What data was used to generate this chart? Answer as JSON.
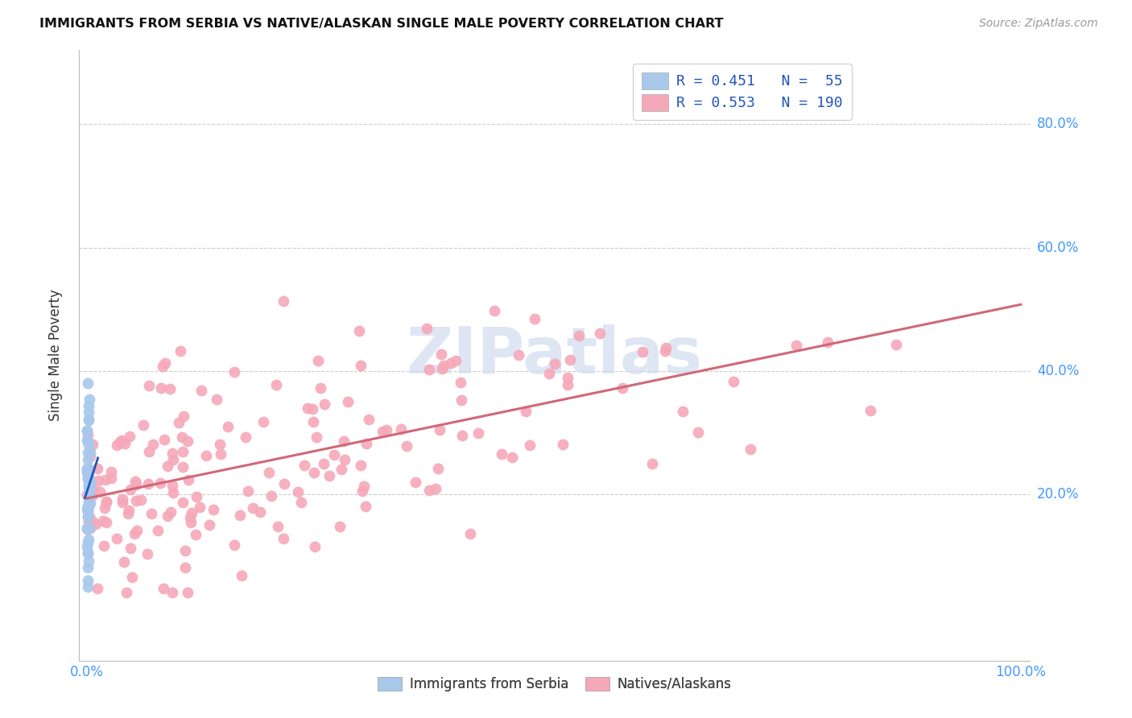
{
  "title": "IMMIGRANTS FROM SERBIA VS NATIVE/ALASKAN SINGLE MALE POVERTY CORRELATION CHART",
  "source": "Source: ZipAtlas.com",
  "ylabel": "Single Male Poverty",
  "ytick_labels": [
    "20.0%",
    "40.0%",
    "60.0%",
    "80.0%"
  ],
  "ytick_values": [
    0.2,
    0.4,
    0.6,
    0.8
  ],
  "legend_line1": "R = 0.451   N =  55",
  "legend_line2": "R = 0.553   N = 190",
  "blue_scatter_color": "#A8C8EC",
  "pink_scatter_color": "#F5A8B8",
  "blue_line_color": "#2255BB",
  "pink_line_color": "#D06878",
  "watermark_color": "#D0DCF0",
  "background_color": "#FFFFFF",
  "grid_color": "#CCCCCC",
  "tick_color": "#4499FF",
  "title_color": "#111111",
  "source_color": "#999999",
  "ylabel_color": "#333333",
  "xlim": [
    -0.008,
    1.01
  ],
  "ylim": [
    -0.07,
    0.92
  ]
}
